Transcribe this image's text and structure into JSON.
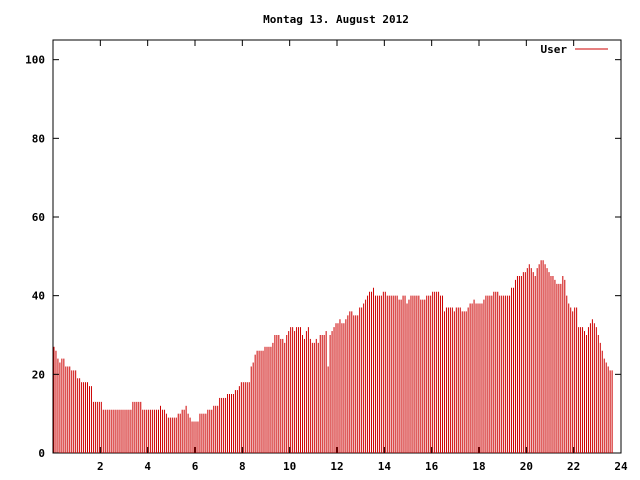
{
  "chart_data": {
    "type": "bar",
    "title": "Montag 13. August 2012",
    "xlabel": "",
    "ylabel": "",
    "xlim": [
      0,
      24
    ],
    "ylim": [
      0,
      105
    ],
    "x_ticks": [
      2,
      4,
      6,
      8,
      10,
      12,
      14,
      16,
      18,
      20,
      22,
      24
    ],
    "y_ticks": [
      0,
      20,
      40,
      60,
      80,
      100
    ],
    "grid": false,
    "legend_position": "top-right",
    "color": "#cc0000",
    "series": [
      {
        "name": "User",
        "interval_hours": 0.083333,
        "values": [
          27,
          26,
          24,
          23,
          24,
          24,
          22,
          22,
          22,
          21,
          21,
          21,
          19,
          19,
          18,
          18,
          18,
          18,
          17,
          17,
          13,
          13,
          13,
          13,
          13,
          11,
          11,
          11,
          11,
          11,
          11,
          11,
          11,
          11,
          11,
          11,
          11,
          11,
          11,
          11,
          13,
          13,
          13,
          13,
          13,
          11,
          11,
          11,
          11,
          11,
          11,
          11,
          11,
          11,
          12,
          11,
          11,
          10,
          9,
          9,
          9,
          9,
          9,
          10,
          10,
          11,
          11,
          12,
          10,
          9,
          8,
          8,
          8,
          8,
          10,
          10,
          10,
          10,
          11,
          11,
          11,
          12,
          12,
          12,
          14,
          14,
          14,
          14,
          15,
          15,
          15,
          15,
          16,
          16,
          17,
          18,
          18,
          18,
          18,
          18,
          22,
          23,
          25,
          26,
          26,
          26,
          26,
          27,
          27,
          27,
          27,
          28,
          30,
          30,
          30,
          29,
          29,
          28,
          30,
          31,
          32,
          32,
          31,
          32,
          32,
          32,
          30,
          29,
          31,
          32,
          29,
          28,
          28,
          29,
          28,
          30,
          30,
          30,
          31,
          22,
          30,
          31,
          32,
          33,
          33,
          34,
          33,
          33,
          34,
          35,
          36,
          36,
          35,
          35,
          35,
          37,
          37,
          38,
          39,
          40,
          41,
          41,
          42,
          40,
          40,
          40,
          40,
          41,
          41,
          40,
          40,
          40,
          40,
          40,
          40,
          39,
          39,
          40,
          40,
          38,
          39,
          40,
          40,
          40,
          40,
          40,
          39,
          39,
          39,
          40,
          40,
          40,
          41,
          41,
          41,
          41,
          40,
          40,
          36,
          37,
          37,
          37,
          37,
          36,
          37,
          37,
          37,
          36,
          36,
          36,
          37,
          38,
          38,
          39,
          38,
          38,
          38,
          38,
          39,
          40,
          40,
          40,
          40,
          41,
          41,
          41,
          40,
          40,
          40,
          40,
          40,
          40,
          42,
          42,
          44,
          45,
          45,
          45,
          46,
          46,
          47,
          48,
          47,
          46,
          45,
          47,
          48,
          49,
          49,
          48,
          47,
          46,
          45,
          45,
          44,
          43,
          43,
          43,
          45,
          44,
          40,
          38,
          37,
          36,
          37,
          37,
          32,
          32,
          32,
          31,
          30,
          32,
          33,
          34,
          33,
          32,
          30,
          28,
          26,
          24,
          23,
          22,
          21,
          21
        ]
      }
    ]
  }
}
